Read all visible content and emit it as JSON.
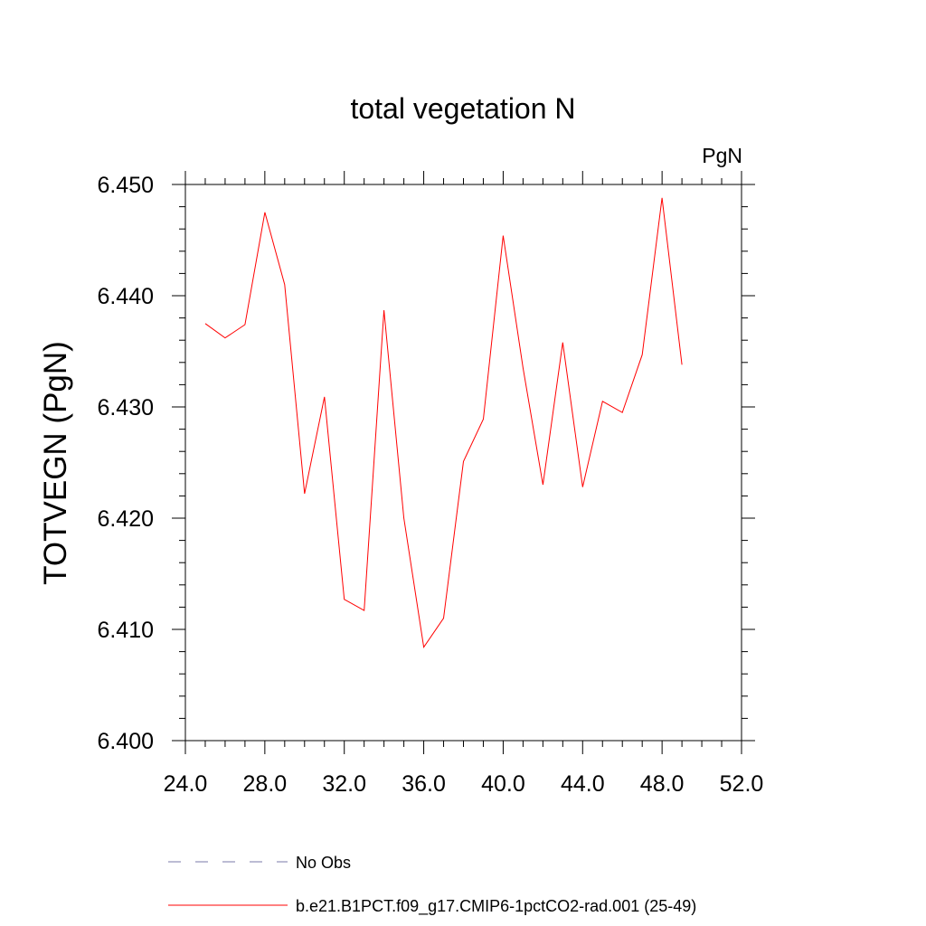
{
  "chart_data": {
    "type": "line",
    "title": "total vegetation N",
    "units_label": "PgN",
    "ylabel": "TOTVEGN  (PgN)",
    "xlabel": "",
    "xlim": [
      24.0,
      52.0
    ],
    "ylim": [
      6.4,
      6.45
    ],
    "x_ticks": [
      "24.0",
      "28.0",
      "32.0",
      "36.0",
      "40.0",
      "44.0",
      "48.0",
      "52.0"
    ],
    "y_ticks": [
      "6.400",
      "6.410",
      "6.420",
      "6.430",
      "6.440",
      "6.450"
    ],
    "grid": false,
    "legend_placement": "bottom",
    "series": [
      {
        "name": "b.e21.B1PCT.f09_g17.CMIP6-1pctCO2-rad.001 (25-49)",
        "color": "#ff0000",
        "style": "solid",
        "x": [
          25,
          26,
          27,
          28,
          29,
          30,
          31,
          32,
          33,
          34,
          35,
          36,
          37,
          38,
          39,
          40,
          41,
          42,
          43,
          44,
          45,
          46,
          47,
          48,
          49
        ],
        "y": [
          6.4375,
          6.4362,
          6.4374,
          6.4475,
          6.441,
          6.4222,
          6.4309,
          6.4127,
          6.4117,
          6.4387,
          6.42,
          6.4084,
          6.411,
          6.4251,
          6.4289,
          6.4454,
          6.4335,
          6.423,
          6.4358,
          6.4228,
          6.4305,
          6.4295,
          6.4347,
          6.4488,
          6.4338
        ]
      }
    ],
    "legend": [
      {
        "label": "No Obs",
        "color": "#7a7aa8",
        "style": "dashed"
      },
      {
        "label": "b.e21.B1PCT.f09_g17.CMIP6-1pctCO2-rad.001 (25-49)",
        "color": "#ff0000",
        "style": "solid"
      }
    ]
  }
}
